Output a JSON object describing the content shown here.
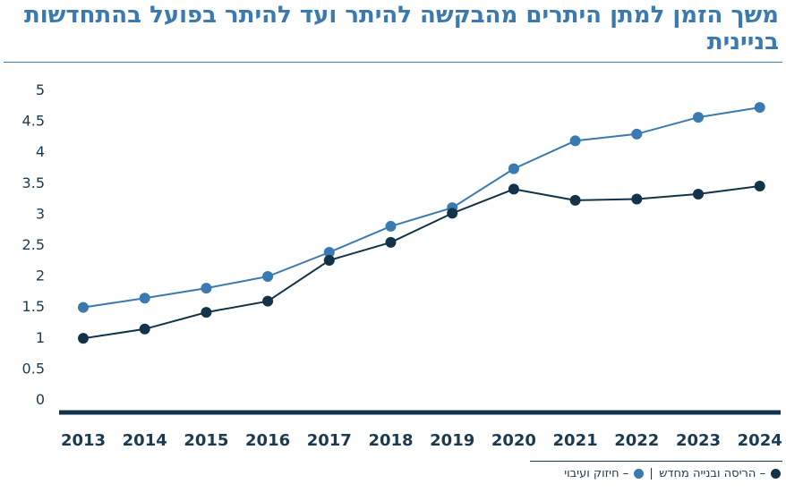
{
  "chart_data": {
    "type": "line",
    "title": "משך הזמן למתן היתרים מהבקשה להיתר ועד להיתר בפועל בהתחדשות בניינית",
    "x": [
      "2013",
      "2014",
      "2015",
      "2016",
      "2017",
      "2018",
      "2019",
      "2020",
      "2021",
      "2022",
      "2023",
      "2024"
    ],
    "ylim": [
      0,
      5
    ],
    "yticks": [
      "0",
      "0.5",
      "1",
      "1.5",
      "2",
      "2.5",
      "3",
      "3.5",
      "4",
      "4.5",
      "5"
    ],
    "grid": false,
    "legend_position": "bottom-right",
    "series": [
      {
        "name": "הריסה ובנייה מחדש",
        "color": "#13334a",
        "values": [
          0.98,
          1.13,
          1.4,
          1.58,
          2.24,
          2.53,
          3.0,
          3.39,
          3.21,
          3.23,
          3.31,
          3.44
        ]
      },
      {
        "name": "חיזוק ועיבוי",
        "color": "#3a7ab1",
        "values": [
          1.48,
          1.63,
          1.79,
          1.98,
          2.37,
          2.79,
          3.09,
          3.72,
          4.17,
          4.28,
          4.55,
          4.71
        ]
      }
    ]
  }
}
